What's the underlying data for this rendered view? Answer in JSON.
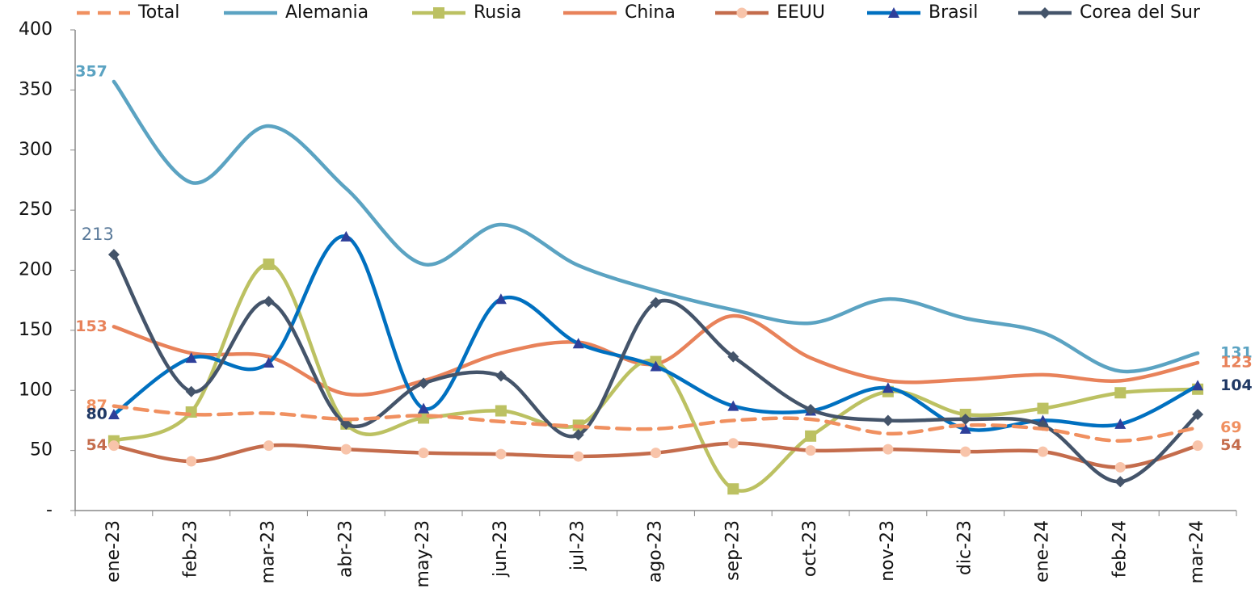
{
  "chart_data": {
    "type": "line",
    "categories": [
      "ene-23",
      "feb-23",
      "mar-23",
      "abr-23",
      "may-23",
      "jun-23",
      "jul-23",
      "ago-23",
      "sep-23",
      "oct-23",
      "nov-23",
      "dic-23",
      "ene-24",
      "feb-24",
      "mar-24"
    ],
    "ylim": [
      0,
      400
    ],
    "yticks": [
      {
        "value": 0,
        "label": "-"
      },
      50,
      100,
      150,
      200,
      250,
      300,
      350,
      400
    ],
    "legend": "top",
    "series": [
      {
        "name": "Total",
        "color": "#F09060",
        "dashed": true,
        "marker": "none",
        "data_labels": [
          0,
          14
        ],
        "values": [
          87,
          80,
          81,
          76,
          79,
          74,
          70,
          68,
          75,
          76,
          64,
          71,
          68,
          58,
          69
        ]
      },
      {
        "name": "Alemania",
        "color": "#5BA3C2",
        "marker": "none",
        "data_labels": [
          0,
          14
        ],
        "values": [
          357,
          273,
          320,
          268,
          205,
          238,
          204,
          183,
          167,
          156,
          176,
          160,
          148,
          116,
          131
        ]
      },
      {
        "name": "Rusia",
        "color": "#BCC162",
        "marker": "square",
        "data_labels": [],
        "values": [
          58,
          82,
          205,
          72,
          77,
          83,
          71,
          124,
          18,
          62,
          99,
          80,
          85,
          98,
          101
        ]
      },
      {
        "name": "China",
        "color": "#E8825A",
        "marker": "none",
        "data_labels": [
          0,
          14
        ],
        "values": [
          153,
          131,
          128,
          97,
          108,
          131,
          140,
          122,
          162,
          127,
          108,
          109,
          113,
          108,
          123
        ]
      },
      {
        "name": "EEUU",
        "color": "#C46C4C",
        "marker": "circle",
        "marker_color": "#F8C4AA",
        "data_labels": [
          0,
          14
        ],
        "values": [
          54,
          41,
          54,
          51,
          48,
          47,
          45,
          48,
          56,
          50,
          51,
          49,
          49,
          36,
          54
        ]
      },
      {
        "name": "Brasil",
        "color": "#0070C0",
        "marker": "triangle",
        "marker_color": "#2E3F9A",
        "label_color": "#1F3864",
        "data_labels": [
          0,
          14
        ],
        "values": [
          80,
          127,
          123,
          228,
          85,
          176,
          139,
          120,
          87,
          83,
          102,
          68,
          75,
          72,
          104
        ]
      },
      {
        "name": "Corea del Sur",
        "color": "#44546A",
        "marker": "diamond",
        "label_color": "#5A7A9A",
        "data_labels": [
          0
        ],
        "values": [
          213,
          99,
          174,
          72,
          106,
          112,
          63,
          173,
          128,
          84,
          75,
          76,
          71,
          24,
          80
        ]
      }
    ]
  }
}
